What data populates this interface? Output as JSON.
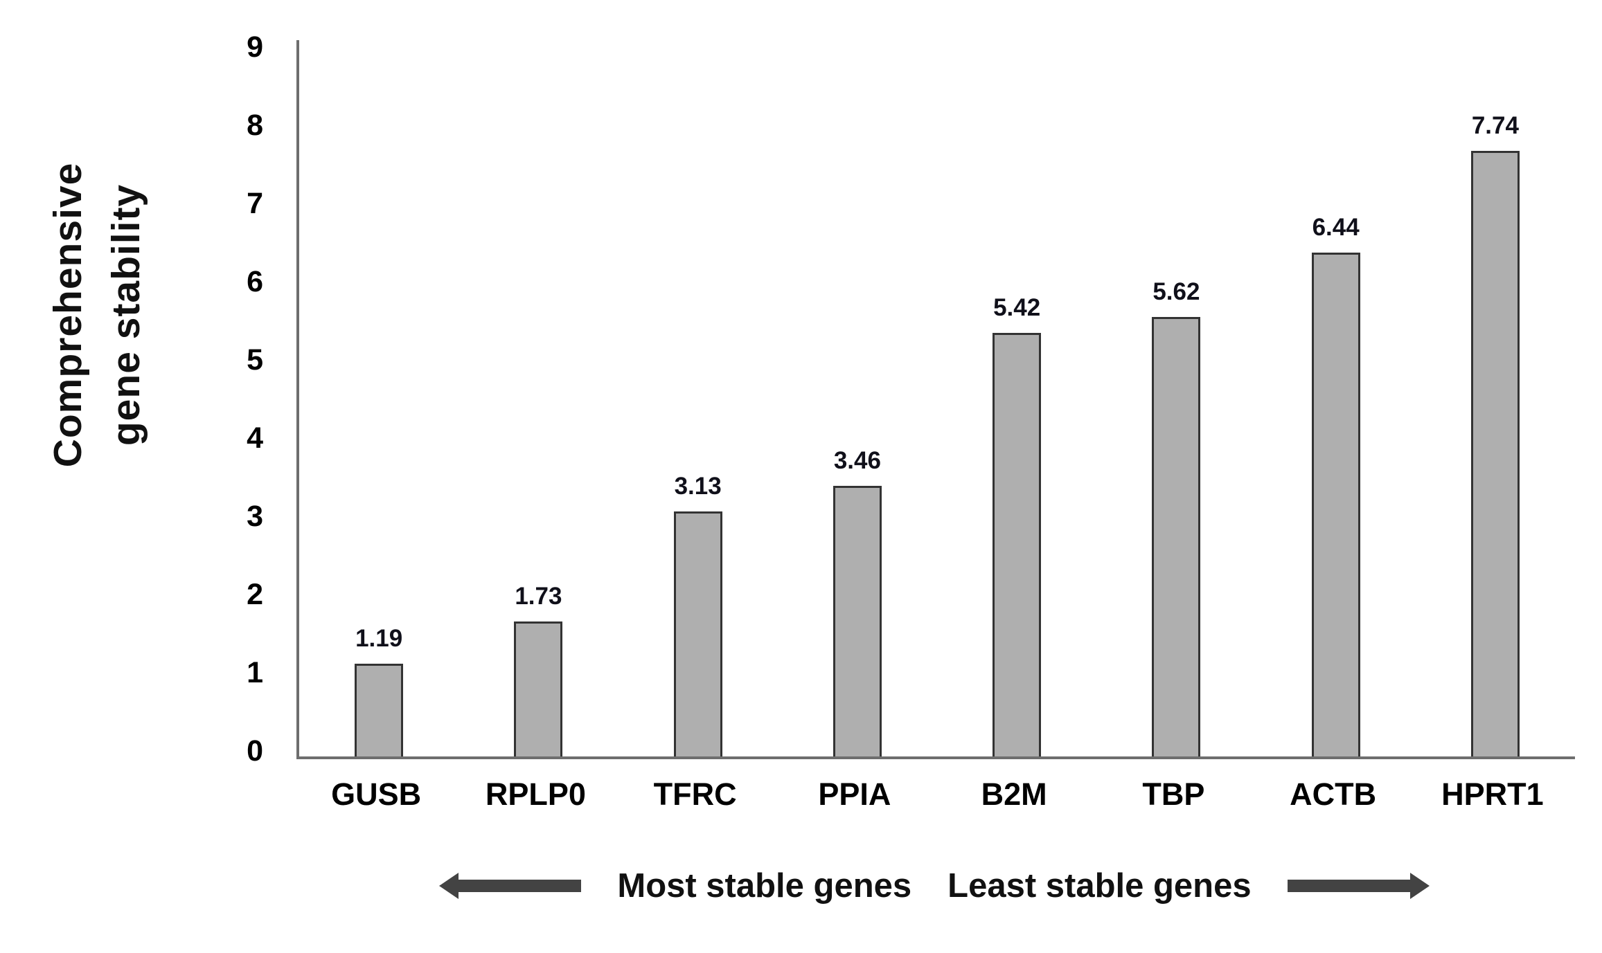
{
  "chart_data": {
    "type": "bar",
    "title": "",
    "categories": [
      "GUSB",
      "RPLP0",
      "TFRC",
      "PPIA",
      "B2M",
      "TBP",
      "ACTB",
      "HPRT1"
    ],
    "values": [
      1.19,
      1.73,
      3.13,
      3.46,
      5.42,
      5.62,
      6.44,
      7.74
    ],
    "value_labels": [
      "1.19",
      "1.73",
      "3.13",
      "3.46",
      "5.42",
      "5.62",
      "6.44",
      "7.74"
    ],
    "xlabel": "",
    "ylabel": "Comprehensive gene stability",
    "ylabel_lines": [
      "Comprehensive",
      "gene stability"
    ],
    "ylim": [
      0,
      9
    ],
    "yticks": [
      0,
      1,
      2,
      3,
      4,
      5,
      6,
      7,
      8,
      9
    ],
    "grid": false,
    "legend": "none",
    "colors": {
      "bar_fill": "#afafaf",
      "bar_border": "#333333",
      "axis_line": "#6e6e6e",
      "tick_text": "#000000",
      "value_text": "#10101a"
    }
  },
  "annotation": {
    "left_label": "Most stable genes",
    "right_label": "Least stable genes",
    "left_arrow_direction": "left",
    "right_arrow_direction": "right",
    "arrow_color": "#434343"
  }
}
